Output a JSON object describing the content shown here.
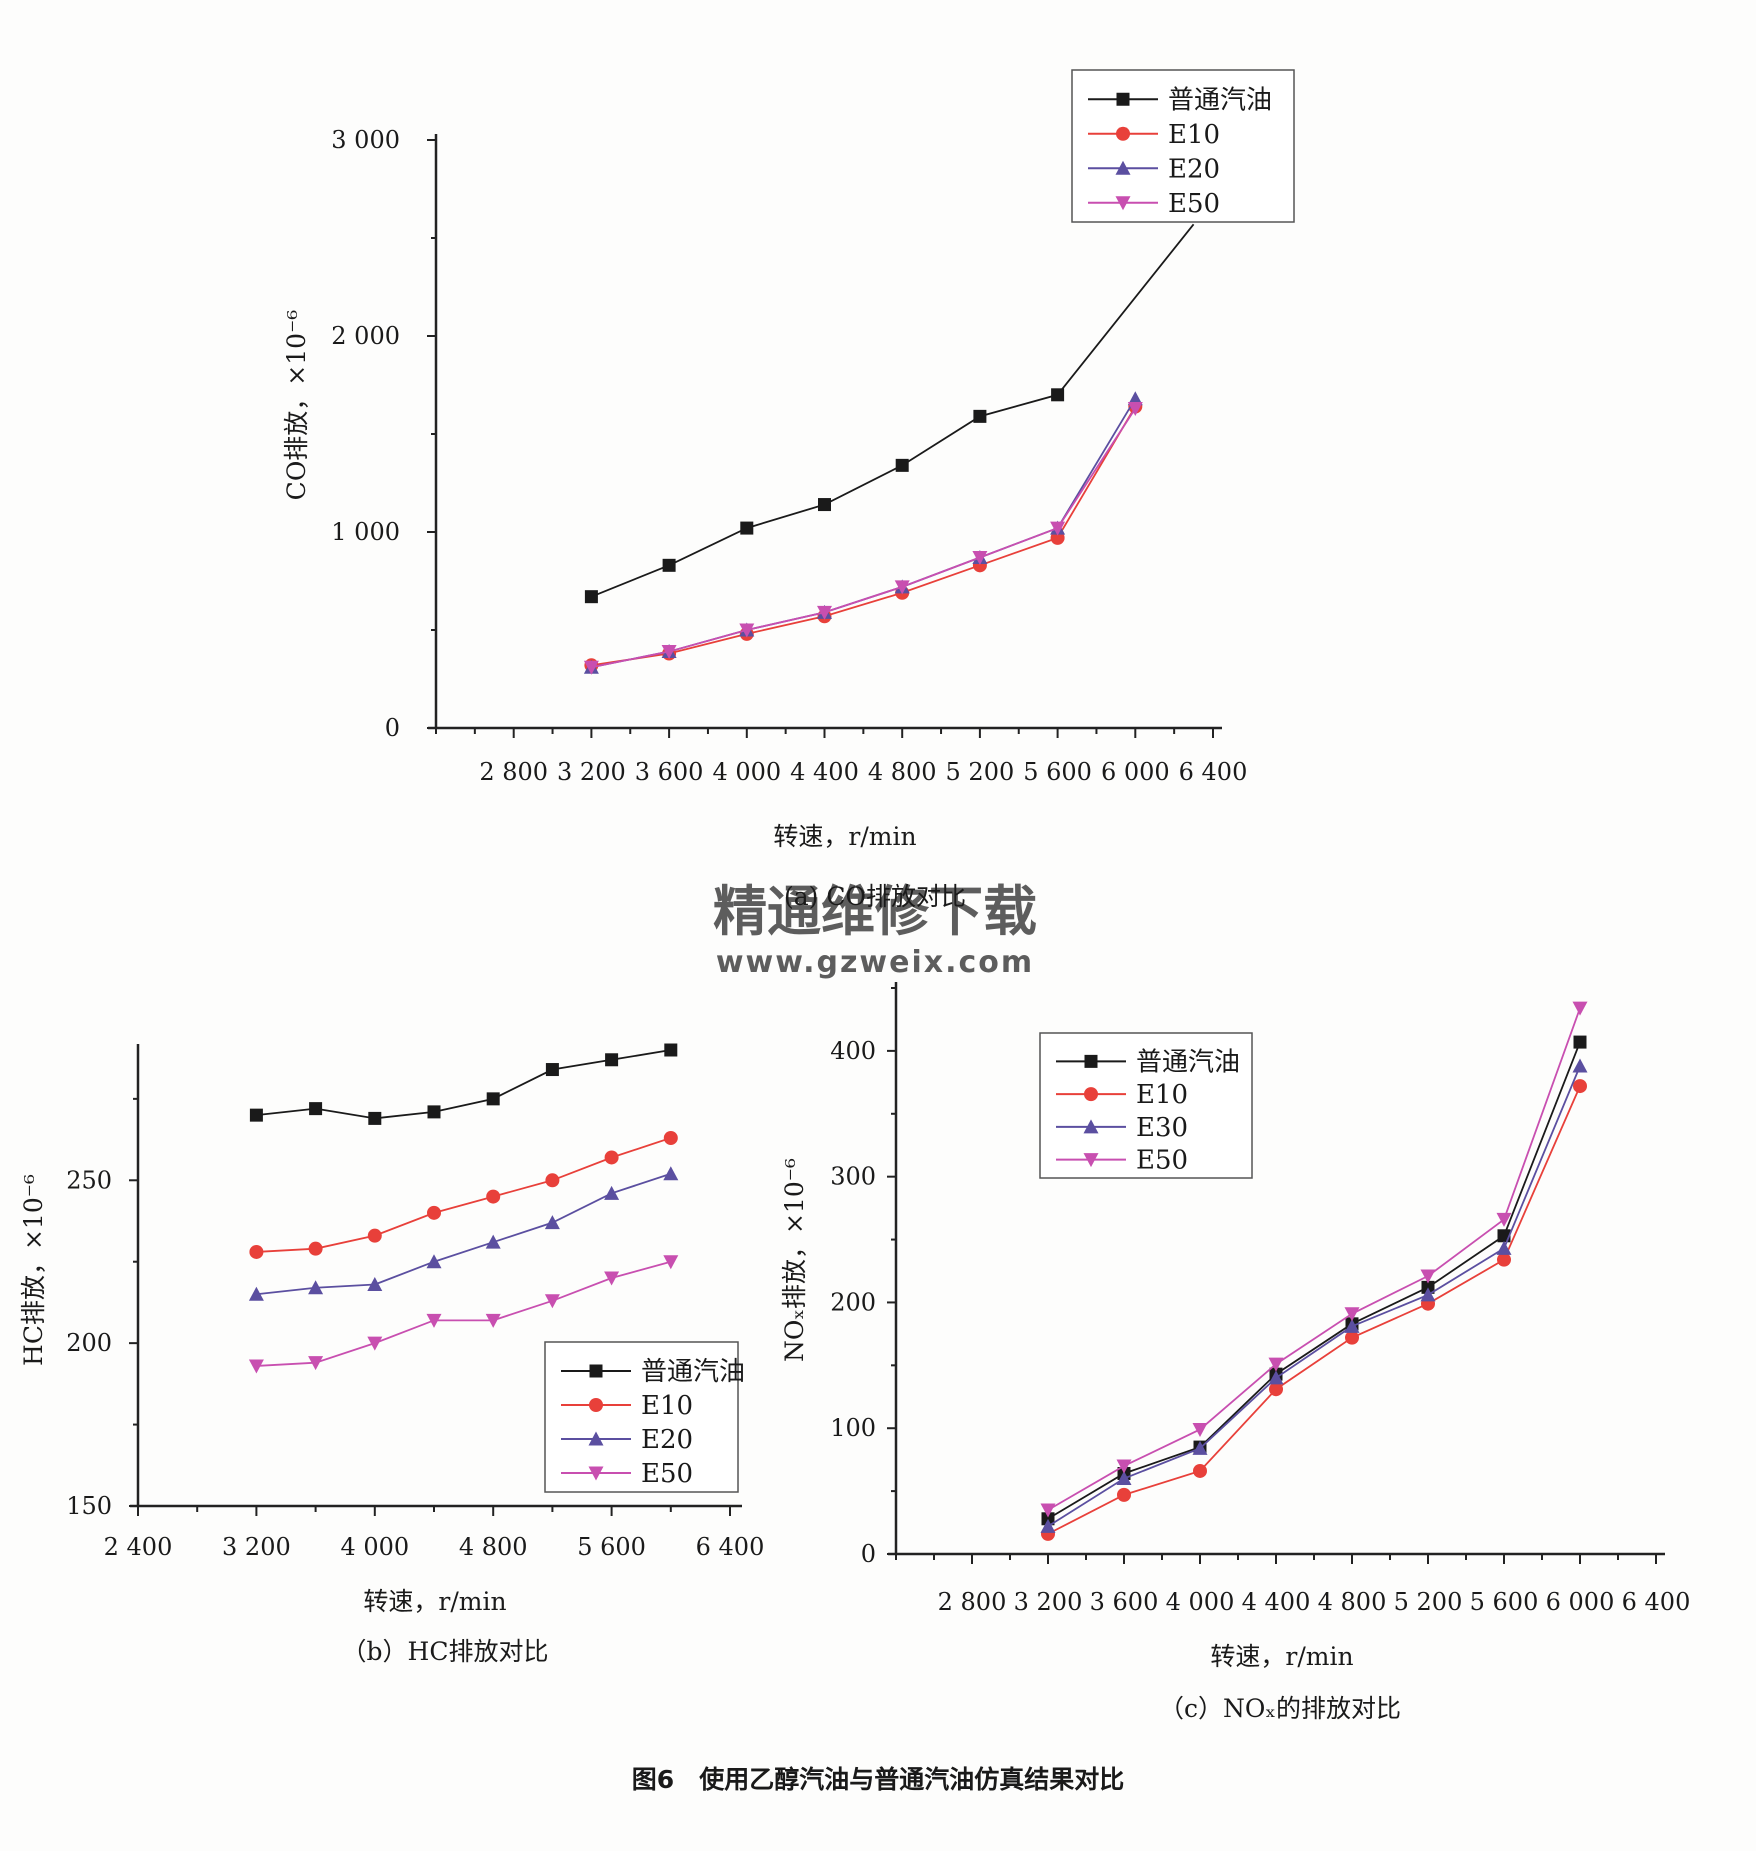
{
  "figure_caption": "图6　使用乙醇汽油与普通汽油仿真结果对比",
  "watermark": {
    "line1": "精通维修下载",
    "line2": "www.gzweix.com",
    "color": "#f08b6a"
  },
  "colors": {
    "普通汽油": "#1a1a1a",
    "E10": "#e8403a",
    "E20": "#5b4fa0",
    "E30": "#5b4fa0",
    "E50": "#c84fb0"
  },
  "chart_data": [
    {
      "id": "a",
      "type": "line",
      "caption": "(a) CO排放对比",
      "xlabel": "转速，r/min",
      "ylabel": "CO排放，×10⁻⁶",
      "xlim": [
        2400,
        6400
      ],
      "ylim": [
        0,
        3000
      ],
      "xtick_labels": [
        "2 800",
        "3 200",
        "3 600",
        "4 000",
        "4 400",
        "4 800",
        "5 200",
        "5 600",
        "6 000",
        "6 400"
      ],
      "xtick_values": [
        2800,
        3200,
        3600,
        4000,
        4400,
        4800,
        5200,
        5600,
        6000,
        6400
      ],
      "ytick_labels": [
        "0",
        "1 000",
        "2 000",
        "3 000"
      ],
      "ytick_values": [
        0,
        1000,
        2000,
        3000
      ],
      "legend": "top-right",
      "series": [
        {
          "name": "普通汽油",
          "marker": "square",
          "x": [
            3200,
            3600,
            4000,
            4400,
            4800,
            5200,
            5600,
            6300
          ],
          "y": [
            670,
            830,
            1020,
            1140,
            1340,
            1590,
            1700,
            2570
          ]
        },
        {
          "name": "E10",
          "marker": "circle",
          "x": [
            3200,
            3600,
            4000,
            4400,
            4800,
            5200,
            5600,
            6000
          ],
          "y": [
            320,
            380,
            480,
            570,
            690,
            830,
            970,
            1640
          ]
        },
        {
          "name": "E20",
          "marker": "triangle-up",
          "x": [
            3200,
            3600,
            4000,
            4400,
            4800,
            5200,
            5600,
            6000
          ],
          "y": [
            310,
            390,
            500,
            590,
            720,
            870,
            1020,
            1680
          ]
        },
        {
          "name": "E50",
          "marker": "triangle-down",
          "x": [
            3200,
            3600,
            4000,
            4400,
            4800,
            5200,
            5600,
            6000
          ],
          "y": [
            310,
            390,
            500,
            590,
            720,
            870,
            1020,
            1630
          ]
        }
      ]
    },
    {
      "id": "b",
      "type": "line",
      "caption": "（b）HC排放对比",
      "xlabel": "转速，r/min",
      "ylabel": "HC排放，×10⁻⁶",
      "xlim": [
        2400,
        6400
      ],
      "ylim": [
        150,
        290
      ],
      "xtick_labels": [
        "2 400",
        "3 200",
        "4 000",
        "4 800",
        "5 600",
        "6 400"
      ],
      "xtick_values": [
        2400,
        3200,
        4000,
        4800,
        5600,
        6400
      ],
      "ytick_labels": [
        "150",
        "200",
        "250"
      ],
      "ytick_values": [
        150,
        200,
        250
      ],
      "legend": "bottom-right",
      "series": [
        {
          "name": "普通汽油",
          "marker": "square",
          "x": [
            3200,
            3600,
            4000,
            4400,
            4800,
            5200,
            5600,
            6000
          ],
          "y": [
            270,
            272,
            269,
            271,
            275,
            284,
            287,
            290
          ]
        },
        {
          "name": "E10",
          "marker": "circle",
          "x": [
            3200,
            3600,
            4000,
            4400,
            4800,
            5200,
            5600,
            6000
          ],
          "y": [
            228,
            229,
            233,
            240,
            245,
            250,
            257,
            263
          ]
        },
        {
          "name": "E20",
          "marker": "triangle-up",
          "x": [
            3200,
            3600,
            4000,
            4400,
            4800,
            5200,
            5600,
            6000
          ],
          "y": [
            215,
            217,
            218,
            225,
            231,
            237,
            246,
            252
          ]
        },
        {
          "name": "E50",
          "marker": "triangle-down",
          "x": [
            3200,
            3600,
            4000,
            4400,
            4800,
            5200,
            5600,
            6000
          ],
          "y": [
            193,
            194,
            200,
            207,
            207,
            213,
            220,
            225
          ]
        }
      ]
    },
    {
      "id": "c",
      "type": "line",
      "caption": "（c）NOₓ的排放对比",
      "xlabel": "转速，r/min",
      "ylabel": "NOₓ排放，×10⁻⁶",
      "xlim": [
        2400,
        6400
      ],
      "ylim": [
        0,
        450
      ],
      "xtick_labels": [
        "2 800",
        "3 200",
        "3 600",
        "4 000",
        "4 400",
        "4 800",
        "5 200",
        "5 600",
        "6 000",
        "6 400"
      ],
      "xtick_values": [
        2800,
        3200,
        3600,
        4000,
        4400,
        4800,
        5200,
        5600,
        6000,
        6400
      ],
      "ytick_labels": [
        "0",
        "100",
        "200",
        "300",
        "400"
      ],
      "ytick_values": [
        0,
        100,
        200,
        300,
        400
      ],
      "legend": "top-left",
      "series": [
        {
          "name": "普通汽油",
          "marker": "square",
          "x": [
            3200,
            3600,
            4000,
            4400,
            4800,
            5200,
            5600,
            6000
          ],
          "y": [
            28,
            64,
            85,
            143,
            183,
            212,
            253,
            407
          ]
        },
        {
          "name": "E10",
          "marker": "circle",
          "x": [
            3200,
            3600,
            4000,
            4400,
            4800,
            5200,
            5600,
            6000
          ],
          "y": [
            16,
            47,
            66,
            131,
            172,
            199,
            234,
            372
          ]
        },
        {
          "name": "E30",
          "marker": "triangle-up",
          "x": [
            3200,
            3600,
            4000,
            4400,
            4800,
            5200,
            5600,
            6000
          ],
          "y": [
            22,
            60,
            84,
            140,
            181,
            206,
            243,
            388
          ]
        },
        {
          "name": "E50",
          "marker": "triangle-down",
          "x": [
            3200,
            3600,
            4000,
            4400,
            4800,
            5200,
            5600,
            6000
          ],
          "y": [
            35,
            70,
            99,
            151,
            191,
            221,
            266,
            434
          ]
        }
      ]
    }
  ]
}
